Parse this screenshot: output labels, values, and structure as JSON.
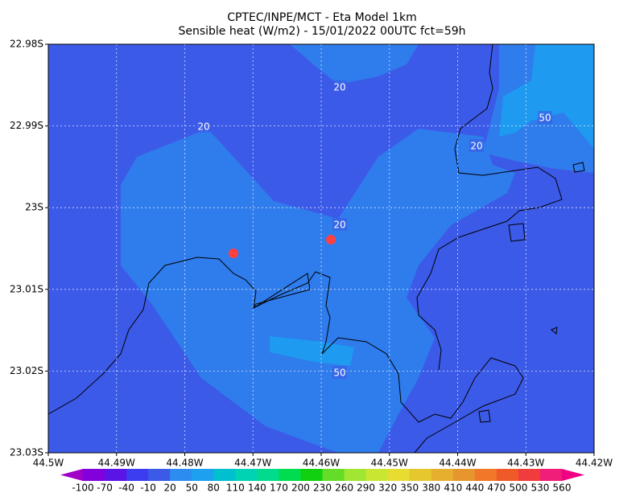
{
  "header": {
    "title_lines": [
      "CPTEC/INPE/MCT -  Eta Model 1km",
      "Sensible heat (W/m2) - 15/01/2022 00UTC fct=59h"
    ]
  },
  "map": {
    "x_labels": [
      "44.5W",
      "44.49W",
      "44.48W",
      "44.47W",
      "44.46W",
      "44.45W",
      "44.44W",
      "44.43W",
      "44.42W"
    ],
    "y_labels": [
      "22.98S",
      "22.99S",
      "23S",
      "23.01S",
      "23.02S",
      "23.03S"
    ],
    "contour_labels": [
      "20",
      "20",
      "20",
      "20",
      "50",
      "50"
    ]
  },
  "colorbar": {
    "labels": [
      "-100",
      "-70",
      "-40",
      "-10",
      "20",
      "50",
      "80",
      "110",
      "140",
      "170",
      "200",
      "230",
      "260",
      "290",
      "320",
      "350",
      "380",
      "410",
      "440",
      "470",
      "500",
      "530",
      "560"
    ],
    "colors": [
      "#a000c8",
      "#8200dc",
      "#5a14e6",
      "#3c3cf0",
      "#3c5ae8",
      "#2d8cf0",
      "#1ea0f0",
      "#00c0d0",
      "#00d2b4",
      "#00dc8c",
      "#00dc50",
      "#10d010",
      "#64dc28",
      "#a0e632",
      "#c8e632",
      "#e6dc32",
      "#e6c82e",
      "#e6af2d",
      "#e6962d",
      "#f07828",
      "#f05a28",
      "#f03c3c",
      "#f01e78",
      "#f00082"
    ]
  }
}
